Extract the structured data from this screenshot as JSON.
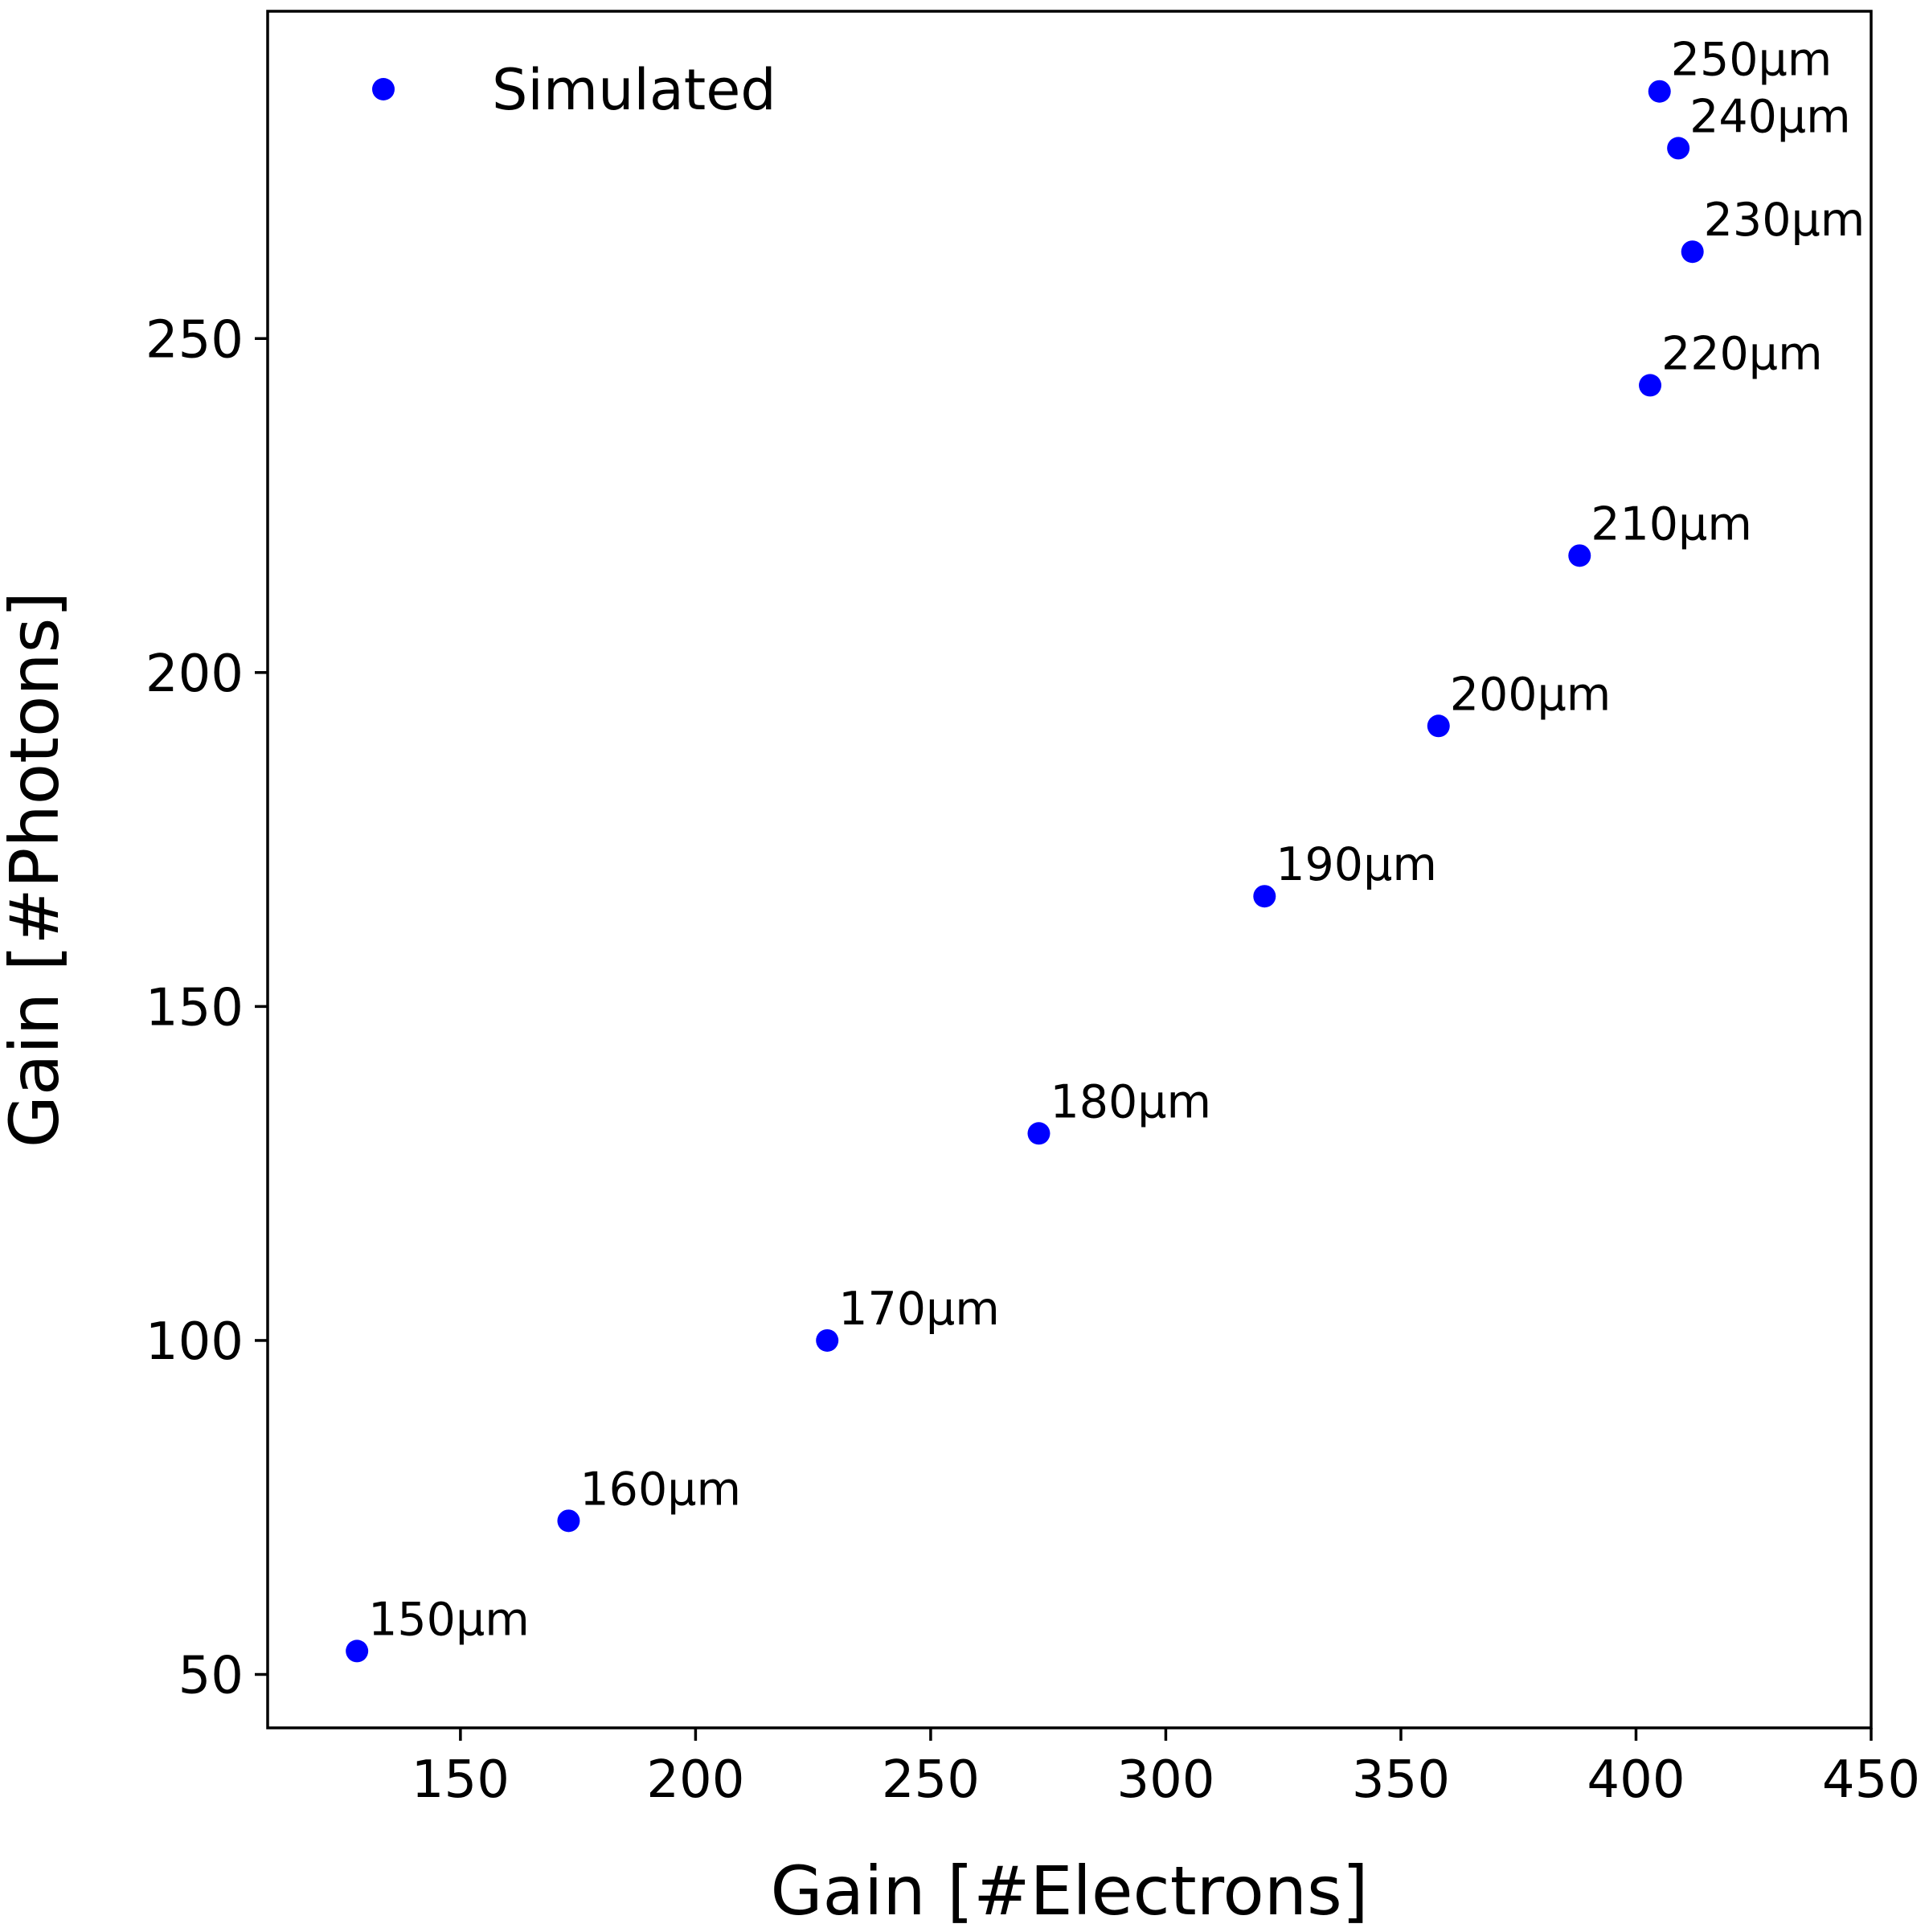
{
  "chart_data": {
    "type": "scatter",
    "title": "",
    "xlabel": "Gain [#Electrons]",
    "ylabel": "Gain [#Photons]",
    "xlim": [
      109,
      450
    ],
    "ylim": [
      42,
      299
    ],
    "xticks": [
      150,
      200,
      250,
      300,
      350,
      400,
      450
    ],
    "yticks": [
      50,
      100,
      150,
      200,
      250
    ],
    "grid": false,
    "legend": {
      "position": "top-left",
      "entries": [
        "Simulated"
      ]
    },
    "series": [
      {
        "name": "Simulated",
        "color": "#0000ff",
        "marker": "circle",
        "points": [
          {
            "x": 128,
            "y": 53.5,
            "label": "150µm"
          },
          {
            "x": 173,
            "y": 73,
            "label": "160µm"
          },
          {
            "x": 228,
            "y": 100,
            "label": "170µm"
          },
          {
            "x": 273,
            "y": 131,
            "label": "180µm"
          },
          {
            "x": 321,
            "y": 166.5,
            "label": "190µm"
          },
          {
            "x": 358,
            "y": 192,
            "label": "200µm"
          },
          {
            "x": 388,
            "y": 217.5,
            "label": "210µm"
          },
          {
            "x": 403,
            "y": 243,
            "label": "220µm"
          },
          {
            "x": 412,
            "y": 263,
            "label": "230µm"
          },
          {
            "x": 409,
            "y": 278.5,
            "label": "240µm"
          },
          {
            "x": 405,
            "y": 287,
            "label": "250µm"
          }
        ]
      }
    ]
  }
}
